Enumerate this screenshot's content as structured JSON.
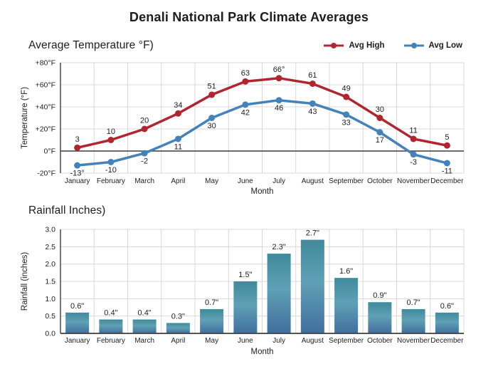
{
  "title": "Denali National Park Climate Averages",
  "colors": {
    "avg_high_red": "#b1252f",
    "avg_low_blue": "#4382bb",
    "grid": "#d8d8d8",
    "axis": "#3c3c3c",
    "text": "#1d1d1d",
    "bar_gradient": [
      "#3f8a9b",
      "#5fa0b5",
      "#416f9e"
    ]
  },
  "chart_data": [
    {
      "type": "line",
      "title": "Average Temperature °F)",
      "xlabel": "Month",
      "ylabel": "Temperature (°F)",
      "ylim": [
        -20,
        80
      ],
      "ytick_values": [
        80,
        60,
        40,
        20,
        0,
        -20
      ],
      "ytick_labels": [
        "+80°F",
        "+60°F",
        "+40°F",
        "+20°F",
        "0°F",
        "-20°F"
      ],
      "grid": true,
      "legend_position": "top-right",
      "categories": [
        "January",
        "February",
        "March",
        "April",
        "May",
        "June",
        "July",
        "August",
        "September",
        "October",
        "November",
        "December"
      ],
      "series": [
        {
          "name": "Avg High",
          "color": "#b1252f",
          "values": [
            3,
            10,
            20,
            34,
            51,
            63,
            66,
            61,
            49,
            30,
            11,
            5
          ],
          "labels": [
            "3",
            "10",
            "20",
            "34",
            "51",
            "63",
            "66°",
            "61",
            "49",
            "30",
            "11",
            "5"
          ],
          "label_position": "above"
        },
        {
          "name": "Avg Low",
          "color": "#4382bb",
          "values": [
            -13,
            -10,
            -2,
            11,
            30,
            42,
            46,
            43,
            33,
            17,
            -3,
            -11
          ],
          "labels": [
            "-13°",
            "-10",
            "-2",
            "11",
            "30",
            "42",
            "46",
            "43",
            "33",
            "17",
            "-3",
            "-11"
          ],
          "label_position": "below"
        }
      ]
    },
    {
      "type": "bar",
      "title": "Rainfall Inches)",
      "xlabel": "Month",
      "ylabel": "Rainfall (inches)",
      "ylim": [
        0,
        3.0
      ],
      "ytick_values": [
        3.0,
        2.5,
        2.0,
        1.5,
        1.0,
        0.5,
        0.0
      ],
      "ytick_labels": [
        "3.0",
        "2.5",
        "2.0",
        "1.5",
        "1.0",
        "0.5",
        "0.0"
      ],
      "grid": true,
      "categories": [
        "January",
        "February",
        "March",
        "April",
        "May",
        "June",
        "July",
        "August",
        "September",
        "October",
        "November",
        "December"
      ],
      "values": [
        0.6,
        0.4,
        0.4,
        0.3,
        0.7,
        1.5,
        2.3,
        2.7,
        1.6,
        0.9,
        0.7,
        0.6
      ],
      "labels": [
        "0.6\"",
        "0.4\"",
        "0.4\"",
        "0.3\"",
        "0.7\"",
        "1.5\"",
        "2.3\"",
        "2.7\"",
        "1.6\"",
        "0.9\"",
        "0.7\"",
        "0.6\""
      ]
    }
  ]
}
